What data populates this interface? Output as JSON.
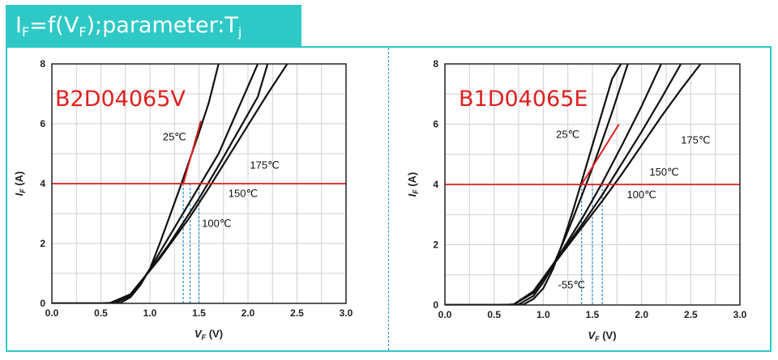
{
  "banner": {
    "I": "I",
    "F_sub": "F",
    "mid": "=f(V",
    "F_sub2": "F",
    "rest": ");parameter:T",
    "j_sub": "j"
  },
  "colors": {
    "banner_bg": "#2ec9c6",
    "accent_red": "#e01f1f",
    "guide_blue": "#2b8bd6",
    "curve": "#111111",
    "grid": "#cfcfcf"
  },
  "chart_data": [
    {
      "type": "line",
      "device_label": "B2D04065V",
      "xlabel_main": "V",
      "xlabel_sub": "F",
      "xlabel_unit": " (V)",
      "ylabel_main": "I",
      "ylabel_sub": "F",
      "ylabel_unit": " (A)",
      "xlim": [
        0,
        3
      ],
      "ylim": [
        0,
        8
      ],
      "xticks": [
        "0.0",
        "0.5",
        "1.0",
        "1.5",
        "2.0",
        "2.5",
        "3.0"
      ],
      "yticks": [
        "0",
        "2",
        "4",
        "6",
        "8"
      ],
      "grid": true,
      "reference_line_y": 4,
      "guide_lines_x": [
        1.34,
        1.41,
        1.5
      ],
      "red_segment": {
        "x": [
          1.34,
          1.52
        ],
        "y": [
          4,
          6.1
        ]
      },
      "series": [
        {
          "name": "25℃",
          "x": [
            0,
            0.5,
            0.7,
            0.8,
            0.9,
            1.0,
            1.1,
            1.2,
            1.3,
            1.4,
            1.5,
            1.6,
            1.7
          ],
          "y": [
            0,
            0,
            0.02,
            0.2,
            0.6,
            1.15,
            2.0,
            2.9,
            3.8,
            4.75,
            5.7,
            6.7,
            8.0
          ]
        },
        {
          "name": "100℃",
          "x": [
            0,
            0.5,
            0.65,
            0.8,
            0.9,
            1.0,
            1.1,
            1.2,
            1.3,
            1.4,
            1.5,
            1.6,
            1.7,
            1.8,
            1.9,
            2.0,
            2.1
          ],
          "y": [
            0,
            0,
            0.02,
            0.25,
            0.65,
            1.15,
            1.7,
            2.25,
            2.8,
            3.35,
            3.9,
            4.45,
            5.0,
            5.75,
            6.5,
            7.25,
            8.0
          ]
        },
        {
          "name": "150℃",
          "x": [
            0,
            0.5,
            0.6,
            0.8,
            0.9,
            1.0,
            1.1,
            1.2,
            1.3,
            1.4,
            1.5,
            1.7,
            1.9,
            2.1,
            2.2
          ],
          "y": [
            0,
            0,
            0.02,
            0.3,
            0.7,
            1.1,
            1.55,
            2.0,
            2.5,
            3.0,
            3.5,
            4.6,
            5.75,
            6.9,
            8.0
          ]
        },
        {
          "name": "175℃",
          "x": [
            0,
            0.5,
            0.6,
            0.8,
            0.9,
            1.0,
            1.1,
            1.2,
            1.4,
            1.6,
            1.8,
            2.0,
            2.2,
            2.4
          ],
          "y": [
            0,
            0,
            0.02,
            0.3,
            0.7,
            1.1,
            1.5,
            1.95,
            2.85,
            3.85,
            4.9,
            5.95,
            7.0,
            8.0
          ]
        }
      ],
      "annotations": [
        {
          "text": "25℃",
          "x": 1.13,
          "y": 5.45
        },
        {
          "text": "175℃",
          "x": 2.02,
          "y": 4.5
        },
        {
          "text": "150℃",
          "x": 1.8,
          "y": 3.55
        },
        {
          "text": "100℃",
          "x": 1.53,
          "y": 2.55
        }
      ]
    },
    {
      "type": "line",
      "device_label": "B1D04065E",
      "xlabel_main": "V",
      "xlabel_sub": "F",
      "xlabel_unit": " (V)",
      "ylabel_main": "I",
      "ylabel_sub": "F",
      "ylabel_unit": " (A)",
      "xlim": [
        0,
        3
      ],
      "ylim": [
        0,
        8
      ],
      "xticks": [
        "0.0",
        "0.5",
        "1.0",
        "1.5",
        "2.0",
        "2.5",
        "3.0"
      ],
      "yticks": [
        "0",
        "2",
        "4",
        "6",
        "8"
      ],
      "grid": true,
      "reference_line_y": 4,
      "guide_lines_x": [
        1.39,
        1.5,
        1.6
      ],
      "red_segment": {
        "x": [
          1.39,
          1.77
        ],
        "y": [
          4,
          6.0
        ]
      },
      "series": [
        {
          "name": "-55℃",
          "x": [
            0,
            0.6,
            0.8,
            0.9,
            1.0,
            1.1,
            1.2,
            1.3,
            1.4,
            1.5,
            1.6,
            1.7,
            1.79
          ],
          "y": [
            0,
            0,
            0.02,
            0.2,
            0.55,
            1.2,
            2.1,
            3.1,
            4.2,
            5.3,
            6.4,
            7.5,
            8.0
          ]
        },
        {
          "name": "25℃",
          "x": [
            0,
            0.6,
            0.75,
            0.9,
            1.0,
            1.1,
            1.2,
            1.3,
            1.4,
            1.5,
            1.6,
            1.7,
            1.8,
            1.86
          ],
          "y": [
            0,
            0,
            0.02,
            0.3,
            0.75,
            1.3,
            2.05,
            2.85,
            3.7,
            4.55,
            5.45,
            6.4,
            7.4,
            8.0
          ]
        },
        {
          "name": "100℃",
          "x": [
            0,
            0.6,
            0.7,
            0.9,
            1.0,
            1.1,
            1.2,
            1.4,
            1.6,
            1.8,
            2.0,
            2.2
          ],
          "y": [
            0,
            0,
            0.02,
            0.4,
            0.85,
            1.35,
            1.85,
            2.9,
            4.05,
            5.3,
            6.6,
            8.0
          ]
        },
        {
          "name": "150℃",
          "x": [
            0,
            0.55,
            0.7,
            0.9,
            1.0,
            1.1,
            1.2,
            1.4,
            1.6,
            1.8,
            2.0,
            2.2,
            2.4
          ],
          "y": [
            0,
            0,
            0.02,
            0.45,
            0.9,
            1.35,
            1.8,
            2.7,
            3.65,
            4.7,
            5.75,
            6.85,
            8.0
          ]
        },
        {
          "name": "175℃",
          "x": [
            0,
            0.55,
            0.7,
            0.9,
            1.0,
            1.1,
            1.2,
            1.4,
            1.6,
            1.8,
            2.0,
            2.2,
            2.4,
            2.6
          ],
          "y": [
            0,
            0,
            0.02,
            0.45,
            0.9,
            1.32,
            1.75,
            2.6,
            3.45,
            4.35,
            5.3,
            6.25,
            7.15,
            8.0
          ]
        }
      ],
      "annotations": [
        {
          "text": "25℃",
          "x": 1.13,
          "y": 5.55
        },
        {
          "text": "175℃",
          "x": 2.4,
          "y": 5.35
        },
        {
          "text": "150℃",
          "x": 2.08,
          "y": 4.3
        },
        {
          "text": "100℃",
          "x": 1.85,
          "y": 3.55
        },
        {
          "text": "-55℃",
          "x": 1.15,
          "y": 0.55
        }
      ]
    }
  ]
}
